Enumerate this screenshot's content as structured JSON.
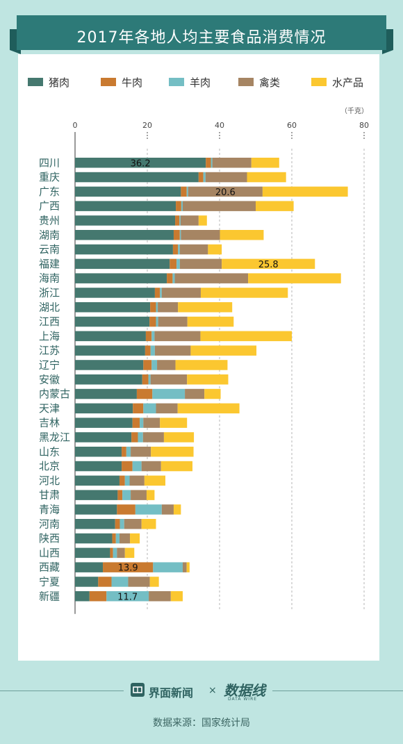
{
  "title": "2017年各地人均主要食品消费情况",
  "unit_label": "（千克）",
  "source_text": "数据来源：国家统计局",
  "footer": {
    "brand": "界面新闻",
    "times": "×",
    "partner": "数据线",
    "partner_sub": "DATA WIRE"
  },
  "colors": {
    "background": "#bfe5e1",
    "title_band": "#2d7a78",
    "pork": "#45786f",
    "beef": "#c97a30",
    "mutton": "#74bec4",
    "poultry": "#a68563",
    "aquatic": "#fbc730"
  },
  "chart_data": {
    "type": "bar",
    "orientation": "horizontal",
    "stacked": true,
    "title": "2017年各地人均主要食品消费情况",
    "xlabel": "（千克）",
    "xlim": [
      0,
      80
    ],
    "xticks": [
      0,
      20,
      40,
      60,
      80
    ],
    "legend_position": "top",
    "categories": [
      "四川",
      "重庆",
      "广东",
      "广西",
      "贵州",
      "湖南",
      "云南",
      "福建",
      "海南",
      "浙江",
      "湖北",
      "江西",
      "上海",
      "江苏",
      "辽宁",
      "安徽",
      "内蒙古",
      "天津",
      "吉林",
      "黑龙江",
      "山东",
      "北京",
      "河北",
      "甘肃",
      "青海",
      "河南",
      "陕西",
      "山西",
      "西藏",
      "宁夏",
      "新疆"
    ],
    "series": [
      {
        "name": "猪肉",
        "color": "#45786f",
        "values": [
          36.2,
          34.2,
          29.3,
          27.9,
          27.7,
          27.3,
          27.1,
          26.2,
          25.4,
          22.1,
          20.8,
          20.6,
          19.6,
          19.4,
          18.9,
          18.6,
          17.1,
          16.0,
          15.9,
          15.6,
          12.9,
          12.9,
          12.3,
          11.8,
          11.6,
          11.1,
          10.3,
          9.7,
          7.7,
          6.4,
          4.0
        ]
      },
      {
        "name": "牛肉",
        "color": "#c97a30",
        "values": [
          1.4,
          1.3,
          1.6,
          1.5,
          1.2,
          1.7,
          1.4,
          1.9,
          1.6,
          1.4,
          1.6,
          1.8,
          1.6,
          1.5,
          2.3,
          1.7,
          4.3,
          2.9,
          2.0,
          1.8,
          1.3,
          3.0,
          1.5,
          1.3,
          5.1,
          1.3,
          1.0,
          0.8,
          13.9,
          3.7,
          4.7
        ]
      },
      {
        "name": "羊肉",
        "color": "#74bec4",
        "values": [
          0.4,
          0.6,
          0.4,
          0.4,
          0.3,
          0.3,
          0.5,
          0.9,
          0.6,
          0.5,
          0.5,
          0.6,
          0.8,
          1.2,
          1.5,
          0.6,
          9.0,
          3.5,
          1.0,
          1.4,
          1.2,
          2.5,
          1.3,
          2.3,
          7.3,
          1.2,
          1.0,
          1.1,
          8.2,
          4.6,
          11.7
        ]
      },
      {
        "name": "禽类",
        "color": "#a68563",
        "values": [
          10.8,
          11.5,
          20.6,
          20.2,
          5.0,
          10.8,
          7.8,
          11.6,
          20.3,
          10.8,
          5.6,
          8.1,
          12.7,
          9.9,
          5.1,
          10.1,
          5.4,
          6.0,
          4.6,
          5.8,
          5.6,
          5.4,
          4.1,
          4.4,
          3.3,
          4.8,
          2.9,
          2.2,
          1.1,
          6.0,
          6.1
        ]
      },
      {
        "name": "水产品",
        "color": "#fbc730",
        "values": [
          7.7,
          10.8,
          23.6,
          10.5,
          2.3,
          12.1,
          3.8,
          25.8,
          25.7,
          24.1,
          15.0,
          12.8,
          25.3,
          18.2,
          14.4,
          11.4,
          4.5,
          17.1,
          7.5,
          8.3,
          11.8,
          8.7,
          5.8,
          2.2,
          2.0,
          4.0,
          2.7,
          2.6,
          0.8,
          2.5,
          3.3
        ]
      }
    ],
    "data_labels": [
      {
        "category": "四川",
        "series": "猪肉",
        "text": "36.2"
      },
      {
        "category": "广东",
        "series": "禽类",
        "text": "20.6"
      },
      {
        "category": "福建",
        "series": "水产品",
        "text": "25.8"
      },
      {
        "category": "西藏",
        "series": "牛肉",
        "text": "13.9"
      },
      {
        "category": "新疆",
        "series": "羊肉",
        "text": "11.7"
      }
    ],
    "grid": "dashed vertical lines at ticks"
  }
}
